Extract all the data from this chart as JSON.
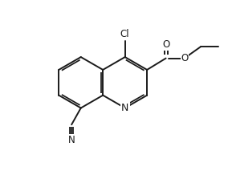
{
  "background_color": "#ffffff",
  "line_color": "#1a1a1a",
  "line_width": 1.4,
  "font_size": 8.5,
  "figsize": [
    2.84,
    2.18
  ],
  "dpi": 100,
  "xlim": [
    0,
    10
  ],
  "ylim": [
    0,
    7.7
  ]
}
